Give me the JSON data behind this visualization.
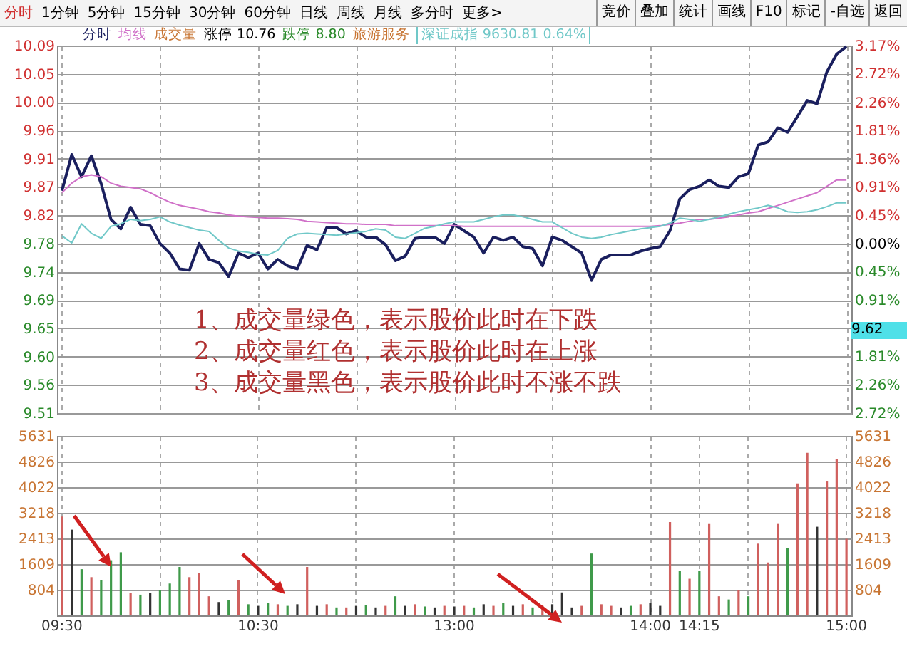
{
  "chart_data": [
    {
      "type": "line",
      "tick_labels": "y",
      "grid": true,
      "legend": "top",
      "categories": [
        null,
        null,
        null,
        null,
        null,
        null,
        null,
        null,
        null,
        null,
        null,
        null,
        null,
        null,
        null,
        null,
        null,
        null,
        null,
        null,
        null,
        null,
        null,
        null,
        null,
        null,
        null,
        null,
        null,
        null,
        null,
        null,
        null,
        null,
        null,
        null,
        null,
        null,
        null,
        null,
        null,
        null,
        null,
        null,
        null,
        null,
        null,
        null,
        null,
        null,
        null,
        null,
        null,
        null,
        null,
        null,
        null,
        null,
        null,
        null,
        null,
        null,
        null,
        null,
        null,
        null,
        null,
        null,
        null,
        null,
        null,
        null,
        null,
        null,
        null,
        null,
        null,
        null,
        null,
        null,
        null
      ],
      "ylim": [
        9.513,
        10.0915
      ],
      "yticks": [
        {
          "value": 10.0915,
          "label": "10.09"
        },
        {
          "value": 10.047,
          "label": "10.05"
        },
        {
          "value": 10.0025,
          "label": "10.00"
        },
        {
          "value": 9.958,
          "label": "9.96"
        },
        {
          "value": 9.9135,
          "label": "9.91"
        },
        {
          "value": 9.869,
          "label": "9.87"
        },
        {
          "value": 9.8245,
          "label": "9.82"
        },
        {
          "value": 9.78,
          "label": "9.78"
        },
        {
          "value": 9.7355,
          "label": "9.74"
        },
        {
          "value": 9.691,
          "label": "9.69"
        },
        {
          "value": 9.6465,
          "label": "9.65"
        },
        {
          "value": 9.602,
          "label": "9.60"
        },
        {
          "value": 9.5575,
          "label": "9.56"
        },
        {
          "value": 9.513,
          "label": "9.51"
        }
      ],
      "y2lim": [
        -2.72,
        3.17
      ],
      "y2ticks": [
        {
          "value": 3.17,
          "label": "3.17%"
        },
        {
          "value": 2.72,
          "label": "2.72%"
        },
        {
          "value": 2.26,
          "label": "2.26%"
        },
        {
          "value": 1.81,
          "label": "1.81%"
        },
        {
          "value": 1.36,
          "label": "1.36%"
        },
        {
          "value": 0.91,
          "label": "0.91%"
        },
        {
          "value": 0.45,
          "label": "0.45%"
        },
        {
          "value": 0,
          "label": "0.00%"
        },
        {
          "value": -0.45,
          "label": "0.45%"
        },
        {
          "value": -0.91,
          "label": "0.91%"
        },
        {
          "value": -1.36,
          "label": null
        },
        {
          "value": -1.81,
          "label": "1.81%"
        },
        {
          "value": -2.26,
          "label": "2.26%"
        },
        {
          "value": -2.72,
          "label": "2.72%"
        }
      ],
      "series": [
        {
          "name": "分时",
          "color": "#1a1f5e",
          "values": [
            9.863,
            9.92,
            9.885,
            9.918,
            9.874,
            9.818,
            9.803,
            9.837,
            9.81,
            9.808,
            9.78,
            9.765,
            9.74,
            9.738,
            9.78,
            9.755,
            9.75,
            9.728,
            9.765,
            9.758,
            9.765,
            9.74,
            9.755,
            9.745,
            9.74,
            9.777,
            9.77,
            9.805,
            9.805,
            9.795,
            9.8,
            9.79,
            9.79,
            9.778,
            9.753,
            9.76,
            9.788,
            9.79,
            9.79,
            9.78,
            9.81,
            9.8,
            9.79,
            9.765,
            9.79,
            9.785,
            9.79,
            9.775,
            9.772,
            9.745,
            9.79,
            9.785,
            9.775,
            9.765,
            9.722,
            9.755,
            9.762,
            9.762,
            9.762,
            9.768,
            9.772,
            9.775,
            9.8,
            9.85,
            9.865,
            9.87,
            9.88,
            9.87,
            9.868,
            9.885,
            9.89,
            9.935,
            9.94,
            9.962,
            9.955,
            9.98,
            10.005,
            10.0,
            10.05,
            10.078,
            10.09
          ]
        },
        {
          "name": "均线",
          "color": "#d070c8",
          "values": [
            9.86,
            9.875,
            9.885,
            9.888,
            9.885,
            9.875,
            9.87,
            9.868,
            9.866,
            9.86,
            9.852,
            9.845,
            9.84,
            9.837,
            9.834,
            9.83,
            9.828,
            9.825,
            9.823,
            9.822,
            9.821,
            9.82,
            9.82,
            9.819,
            9.818,
            9.815,
            9.814,
            9.813,
            9.812,
            9.811,
            9.811,
            9.81,
            9.81,
            9.81,
            9.808,
            9.808,
            9.808,
            9.808,
            9.808,
            9.808,
            9.808,
            9.807,
            9.807,
            9.807,
            9.807,
            9.807,
            9.807,
            9.807,
            9.807,
            9.807,
            9.807,
            9.807,
            9.807,
            9.807,
            9.807,
            9.807,
            9.807,
            9.807,
            9.807,
            9.807,
            9.807,
            9.808,
            9.81,
            9.812,
            9.815,
            9.818,
            9.818,
            9.82,
            9.822,
            9.825,
            9.828,
            9.83,
            9.835,
            9.84,
            9.845,
            9.85,
            9.855,
            9.86,
            9.87,
            9.88,
            9.88
          ]
        },
        {
          "name": "深证成指",
          "color": "#70c8c8",
          "values": [
            9.792,
            9.781,
            9.811,
            9.796,
            9.788,
            9.807,
            9.811,
            9.818,
            9.816,
            9.818,
            9.822,
            9.814,
            9.809,
            9.805,
            9.801,
            9.799,
            9.785,
            9.773,
            9.768,
            9.766,
            9.763,
            9.762,
            9.769,
            9.788,
            9.795,
            9.796,
            9.795,
            9.794,
            9.793,
            9.795,
            9.797,
            9.799,
            9.803,
            9.801,
            9.79,
            9.788,
            9.796,
            9.804,
            9.807,
            9.811,
            9.814,
            9.814,
            9.814,
            9.818,
            9.822,
            9.825,
            9.825,
            9.822,
            9.818,
            9.814,
            9.814,
            9.805,
            9.796,
            9.79,
            9.788,
            9.79,
            9.794,
            9.797,
            9.8,
            9.803,
            9.805,
            9.807,
            9.812,
            9.82,
            9.818,
            9.815,
            9.818,
            9.822,
            9.826,
            9.83,
            9.833,
            9.836,
            9.84,
            9.836,
            9.83,
            9.829,
            9.83,
            9.833,
            9.838,
            9.844,
            9.844
          ]
        }
      ],
      "annotations": [
        "分时",
        "1分钟",
        "5分钟",
        "15分钟",
        "30分钟",
        "60分钟",
        "日线",
        "周线",
        "月线",
        "多分时",
        "更多>",
        "竞价",
        "叠加",
        "统计",
        "画线",
        "F10",
        "标记",
        "-自选",
        "返回",
        "涨停 10.76",
        "跌停 8.80",
        "旅游服务",
        "9630.81 0.64%",
        "1、成交量绿色，表示股价此时在下跌",
        "2、成交量红色，表示股价此时在上涨",
        "3、成交量黑色，表示股价此时不涨不跌",
        "9.62"
      ]
    },
    {
      "type": "bar",
      "grid": true,
      "categories": [
        "09:30",
        null,
        null,
        null,
        null,
        null,
        null,
        null,
        null,
        null,
        null,
        null,
        null,
        null,
        null,
        null,
        null,
        null,
        null,
        null,
        "10:30",
        null,
        null,
        null,
        null,
        null,
        null,
        null,
        null,
        null,
        null,
        null,
        null,
        null,
        null,
        null,
        null,
        null,
        null,
        null,
        "13:00",
        null,
        null,
        null,
        null,
        null,
        null,
        null,
        null,
        null,
        null,
        null,
        null,
        null,
        null,
        null,
        null,
        null,
        null,
        null,
        "14:00",
        null,
        null,
        null,
        null,
        "14:15",
        null,
        null,
        null,
        null,
        null,
        null,
        null,
        null,
        null,
        null,
        null,
        null,
        null,
        null,
        "15:00"
      ],
      "ylim": [
        0,
        5631
      ],
      "yticks": [
        804,
        1609,
        2413,
        3218,
        4022,
        4826,
        5631
      ],
      "y2lim": [
        0,
        5631
      ],
      "y2ticks": [
        804,
        1609,
        2413,
        3218,
        4022,
        4826,
        5631
      ],
      "series": [
        {
          "name": "成交量",
          "values": [
            3100,
            2690,
            1450,
            1200,
            1100,
            1730,
            1980,
            700,
            650,
            700,
            800,
            1000,
            1520,
            1200,
            1330,
            600,
            420,
            480,
            1120,
            350,
            300,
            400,
            350,
            300,
            350,
            1520,
            300,
            350,
            250,
            250,
            300,
            330,
            250,
            300,
            600,
            300,
            350,
            280,
            250,
            300,
            280,
            300,
            250,
            350,
            300,
            400,
            300,
            350,
            250,
            300,
            350,
            720,
            250,
            300,
            1940,
            350,
            300,
            250,
            300,
            350,
            400,
            300,
            2930,
            1390,
            1150,
            1390,
            2890,
            600,
            500,
            800,
            600,
            2250,
            1660,
            2890,
            2100,
            4140,
            5100,
            2780,
            4200,
            4900,
            2400
          ],
          "colors": [
            "#d0605e",
            "#333333",
            "#3f9a4a",
            "#d0605e",
            "#3f9a4a",
            "#3f9a4a",
            "#3f9a4a",
            "#d0605e",
            "#3f9a4a",
            "#333333",
            "#3f9a4a",
            "#3f9a4a",
            "#3f9a4a",
            "#d0605e",
            "#d0605e",
            "#d0605e",
            "#333333",
            "#3f9a4a",
            "#d0605e",
            "#3f9a4a",
            "#333333",
            "#3f9a4a",
            "#d0605e",
            "#3f9a4a",
            "#333333",
            "#d0605e",
            "#333333",
            "#d0605e",
            "#3f9a4a",
            "#d0605e",
            "#333333",
            "#3f9a4a",
            "#333333",
            "#d0605e",
            "#3f9a4a",
            "#333333",
            "#d0605e",
            "#3f9a4a",
            "#333333",
            "#d0605e",
            "#333333",
            "#d0605e",
            "#3f9a4a",
            "#333333",
            "#d0605e",
            "#3f9a4a",
            "#333333",
            "#d0605e",
            "#3f9a4a",
            "#d0605e",
            "#333333",
            "#333333",
            "#333333",
            "#d0605e",
            "#3f9a4a",
            "#d0605e",
            "#d0605e",
            "#333333",
            "#3f9a4a",
            "#d0605e",
            "#333333",
            "#333333",
            "#d0605e",
            "#3f9a4a",
            "#d0605e",
            "#3f9a4a",
            "#d0605e",
            "#d0605e",
            "#3f9a4a",
            "#d0605e",
            "#3f9a4a",
            "#d0605e",
            "#d0605e",
            "#d0605e",
            "#3f9a4a",
            "#d0605e",
            "#d0605e",
            "#333333",
            "#d0605e",
            "#d0605e",
            "#d0605e"
          ]
        }
      ]
    }
  ]
}
